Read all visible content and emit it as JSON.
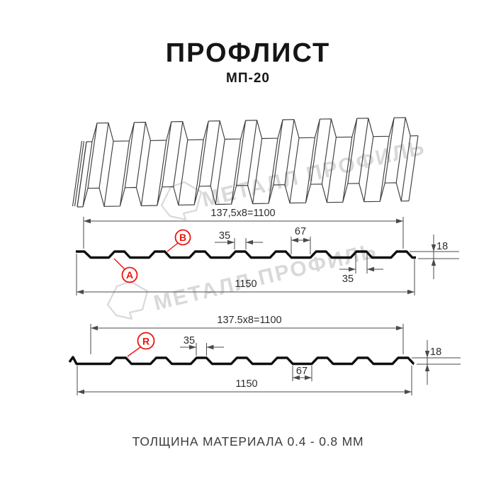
{
  "header": {
    "title": "ПРОФЛИСТ",
    "subtitle": "МП-20"
  },
  "watermark": {
    "text": "МЕТАЛЛ ПРОФИЛЬ"
  },
  "footer": {
    "caption": "ТОЛЩИНА МАТЕРИАЛА 0.4 - 0.8 ММ"
  },
  "colors": {
    "red": "#ee1410",
    "ink": "#151515",
    "dim": "#4a4a4a",
    "watermark": "#d9d9d9"
  },
  "section_top": {
    "module_label": "137,5x8=1100",
    "overall_label": "1150",
    "rib_top_label": "35",
    "rib_bottom_label": "35",
    "valley_label": "67",
    "height_label": "18",
    "marker_a": "А",
    "marker_b": "В"
  },
  "section_bottom": {
    "module_label": "137.5x8=1100",
    "overall_label": "1150",
    "rib_top_label": "35",
    "valley_label": "67",
    "height_label": "18",
    "marker_r": "R"
  }
}
